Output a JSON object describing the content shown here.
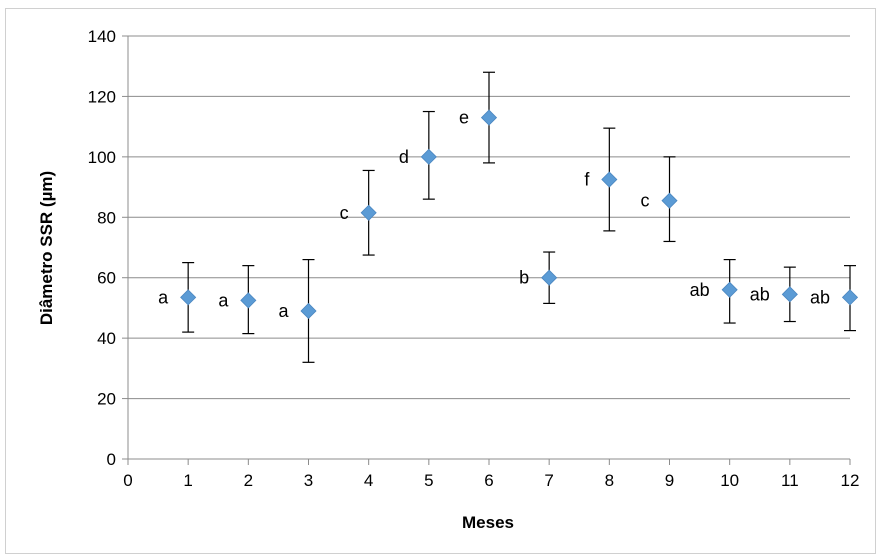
{
  "chart_data": {
    "type": "scatter",
    "title": "",
    "xlabel": "Meses",
    "ylabel": "Diâmetro SSR (µm)",
    "xlim": [
      0,
      12
    ],
    "ylim": [
      0,
      140
    ],
    "x_ticks": [
      0,
      1,
      2,
      3,
      4,
      5,
      6,
      7,
      8,
      9,
      10,
      11,
      12
    ],
    "y_ticks": [
      0,
      20,
      40,
      60,
      80,
      100,
      120,
      140
    ],
    "grid": "horizontal",
    "legend": "none",
    "series": [
      {
        "marker": "diamond",
        "color": "#5b9bd5",
        "error_bar_color": "#000000",
        "points": [
          {
            "x": 1,
            "y": 53.5,
            "err_low": 42,
            "err_high": 65,
            "label": "a"
          },
          {
            "x": 2,
            "y": 52.5,
            "err_low": 41.5,
            "err_high": 64,
            "label": "a"
          },
          {
            "x": 3,
            "y": 49,
            "err_low": 32,
            "err_high": 66,
            "label": "a"
          },
          {
            "x": 4,
            "y": 81.5,
            "err_low": 67.5,
            "err_high": 95.5,
            "label": "c"
          },
          {
            "x": 5,
            "y": 100,
            "err_low": 86,
            "err_high": 115,
            "label": "d"
          },
          {
            "x": 6,
            "y": 113,
            "err_low": 98,
            "err_high": 128,
            "label": "e"
          },
          {
            "x": 7,
            "y": 60,
            "err_low": 51.5,
            "err_high": 68.5,
            "label": "b"
          },
          {
            "x": 8,
            "y": 92.5,
            "err_low": 75.5,
            "err_high": 109.5,
            "label": "f"
          },
          {
            "x": 9,
            "y": 85.5,
            "err_low": 72,
            "err_high": 100,
            "label": "c"
          },
          {
            "x": 10,
            "y": 56,
            "err_low": 45,
            "err_high": 66,
            "label": "ab"
          },
          {
            "x": 11,
            "y": 54.5,
            "err_low": 45.5,
            "err_high": 63.5,
            "label": "ab"
          },
          {
            "x": 12,
            "y": 53.5,
            "err_low": 42.5,
            "err_high": 64,
            "label": "ab"
          }
        ]
      }
    ]
  }
}
